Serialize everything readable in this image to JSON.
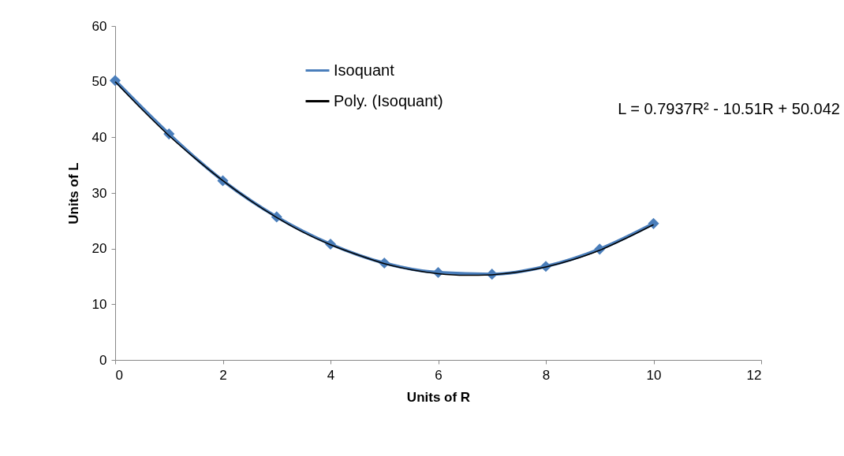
{
  "chart_data": {
    "type": "line",
    "xlabel": "Units of R",
    "ylabel": "Units of L",
    "x": [
      0,
      1,
      2,
      3,
      4,
      5,
      6,
      7,
      8,
      9,
      10
    ],
    "series": [
      {
        "name": "Isoquant",
        "color": "#4a7ebb",
        "values": [
          50.2,
          40.6,
          32.2,
          25.7,
          20.8,
          17.4,
          15.7,
          15.4,
          16.8,
          19.9,
          24.5
        ],
        "marker": "diamond"
      },
      {
        "name": "Poly. (Isoquant)",
        "color": "#000000",
        "type": "line",
        "marker": "none",
        "x": [
          0,
          0.5,
          1,
          1.5,
          2,
          2.5,
          3,
          3.5,
          4,
          4.5,
          5,
          5.5,
          6,
          6.5,
          7,
          7.5,
          8,
          8.5,
          9,
          9.5,
          10
        ],
        "values": [
          50.0,
          45.0,
          40.3,
          36.1,
          32.2,
          28.7,
          25.6,
          22.9,
          20.7,
          18.9,
          17.3,
          16.2,
          15.5,
          15.2,
          15.3,
          15.8,
          16.7,
          18.0,
          19.7,
          21.9,
          24.3
        ]
      }
    ],
    "xlim": [
      0,
      12
    ],
    "xticks": [
      0,
      2,
      4,
      6,
      8,
      10,
      12
    ],
    "ylim": [
      0,
      60
    ],
    "yticks": [
      0,
      10,
      20,
      30,
      40,
      50,
      60
    ],
    "grid": false,
    "legend": "top",
    "line_style": "solid",
    "annotations": [
      "L = 0.7937R² - 10.51R + 50.042"
    ]
  }
}
